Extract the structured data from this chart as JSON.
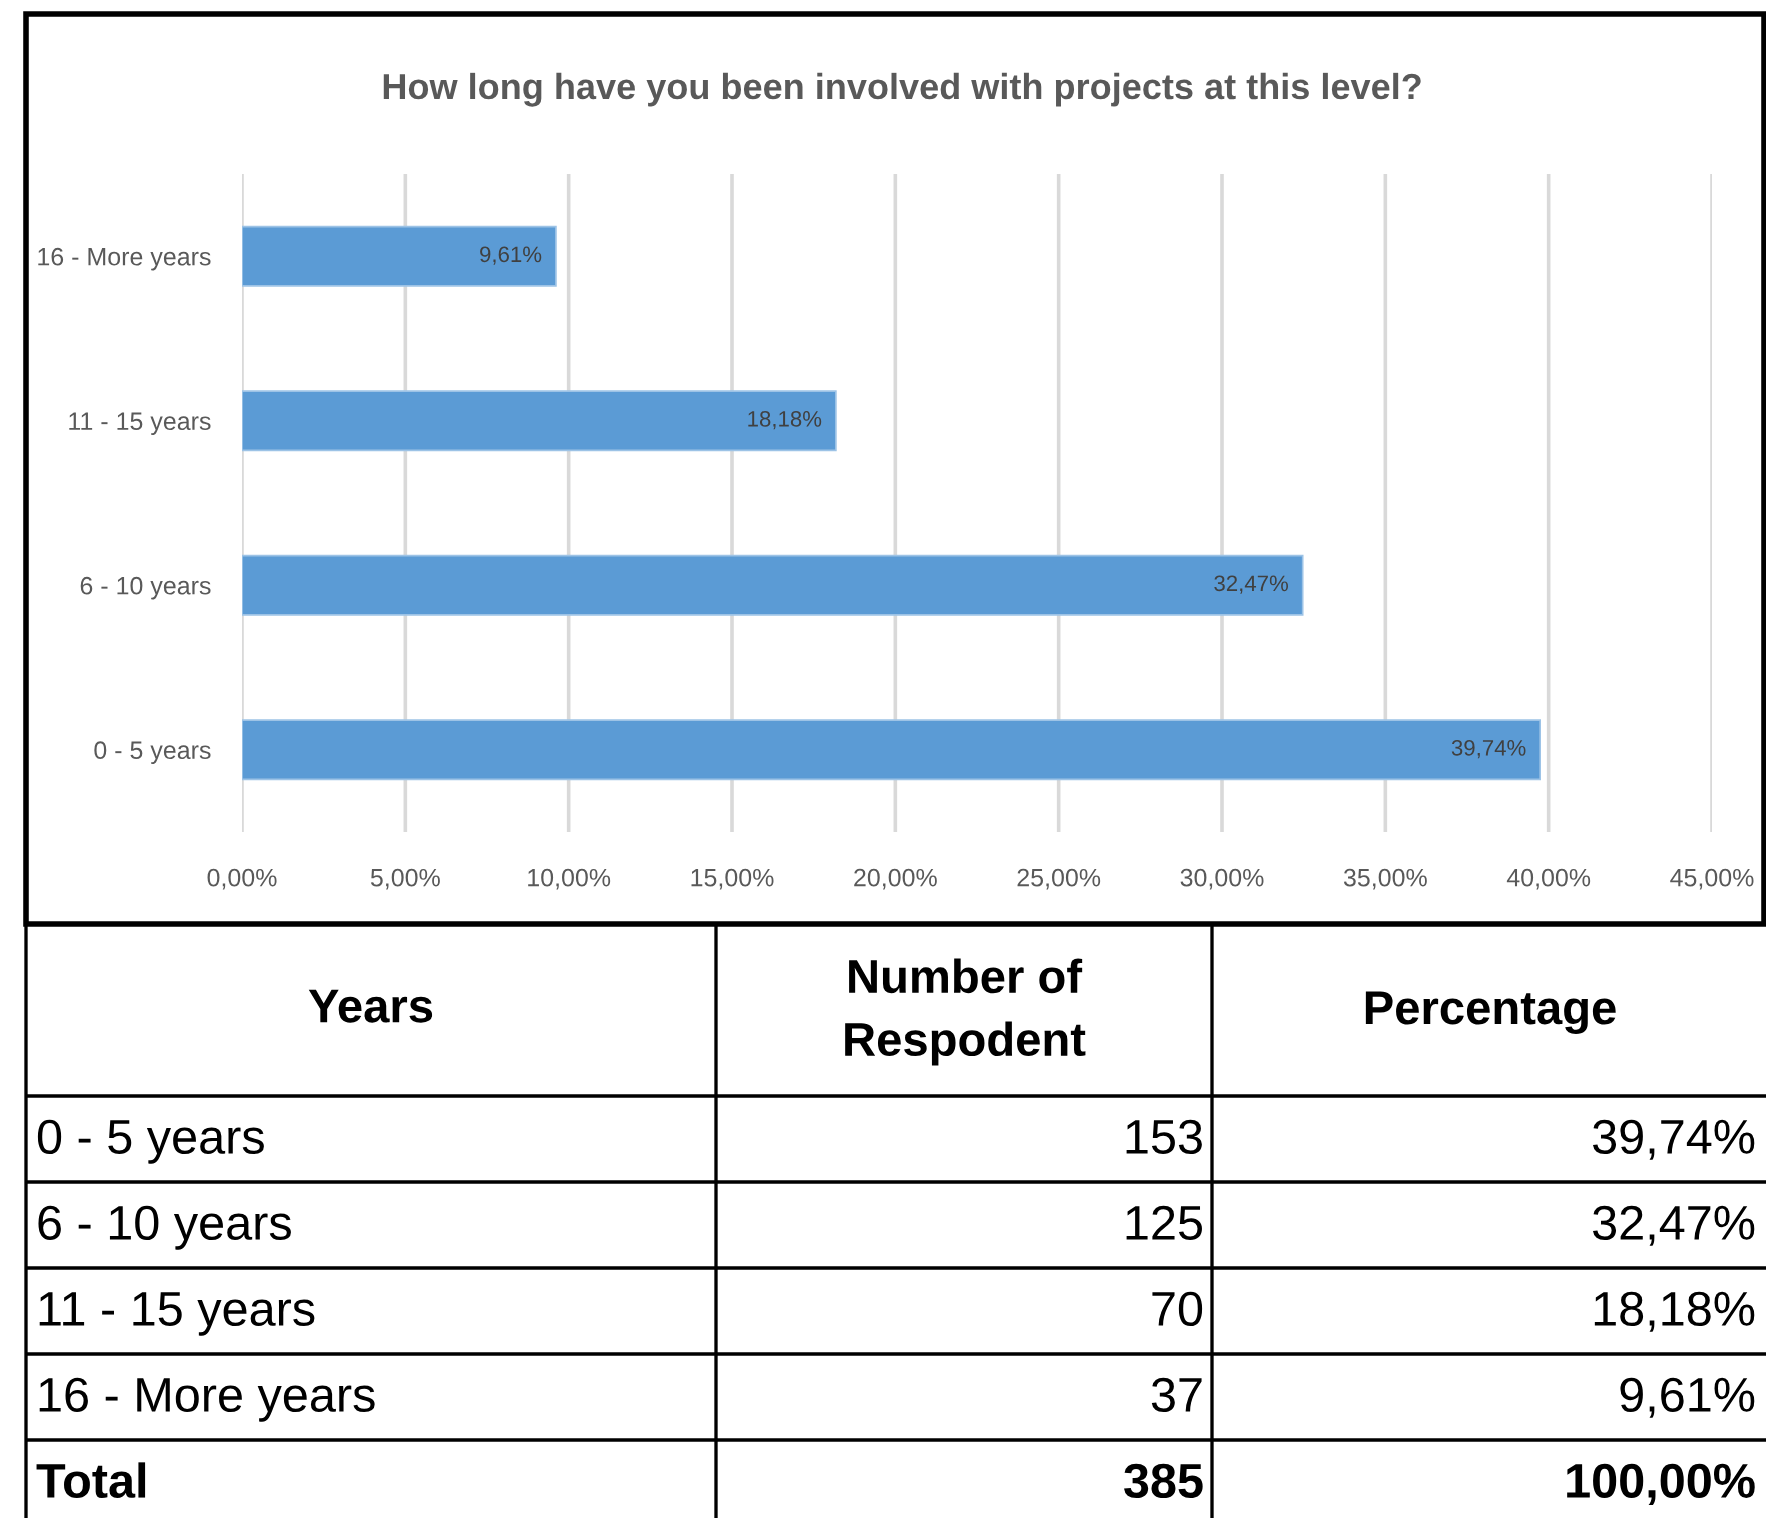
{
  "chart_data": [
    {
      "type": "bar",
      "orientation": "horizontal",
      "title": "How long have you been involved with projects at this level?",
      "categories": [
        "16 - More years",
        "11 - 15 years",
        "6 - 10 years",
        "0 - 5 years"
      ],
      "values": [
        9.61,
        18.18,
        32.47,
        39.74
      ],
      "color": "#5b9bd5",
      "value_labels": [
        "9,61%",
        "18,18%",
        "32,47%",
        "39,74%"
      ],
      "xlim": [
        0,
        45
      ],
      "xticks": [
        {
          "value": 0,
          "label": "0,00%"
        },
        {
          "value": 5,
          "label": "5,00%"
        },
        {
          "value": 10,
          "label": "10,00%"
        },
        {
          "value": 15,
          "label": "15,00%"
        },
        {
          "value": 20,
          "label": "20,00%"
        },
        {
          "value": 25,
          "label": "25,00%"
        },
        {
          "value": 30,
          "label": "30,00%"
        },
        {
          "value": 35,
          "label": "35,00%"
        },
        {
          "value": 40,
          "label": "40,00%"
        },
        {
          "value": 45,
          "label": "45,00%"
        }
      ],
      "grid": "x"
    },
    {
      "type": "other",
      "ylabel": "Years",
      "categories": [
        "0 - 5 years",
        "6 - 10 years",
        "11 - 15 years",
        "16 - More years",
        "Total"
      ],
      "series": [
        {
          "name": "Number of\nRespodent",
          "values": [
            153,
            125,
            70,
            37,
            385
          ]
        },
        {
          "name": "Percentage",
          "values": [
            39.74,
            32.47,
            18.18,
            9.61,
            100.0
          ],
          "value_labels": [
            "39,74%",
            "32,47%",
            "18,18%",
            "9,61%",
            "100,00%"
          ]
        }
      ],
      "data_labels": true
    }
  ]
}
